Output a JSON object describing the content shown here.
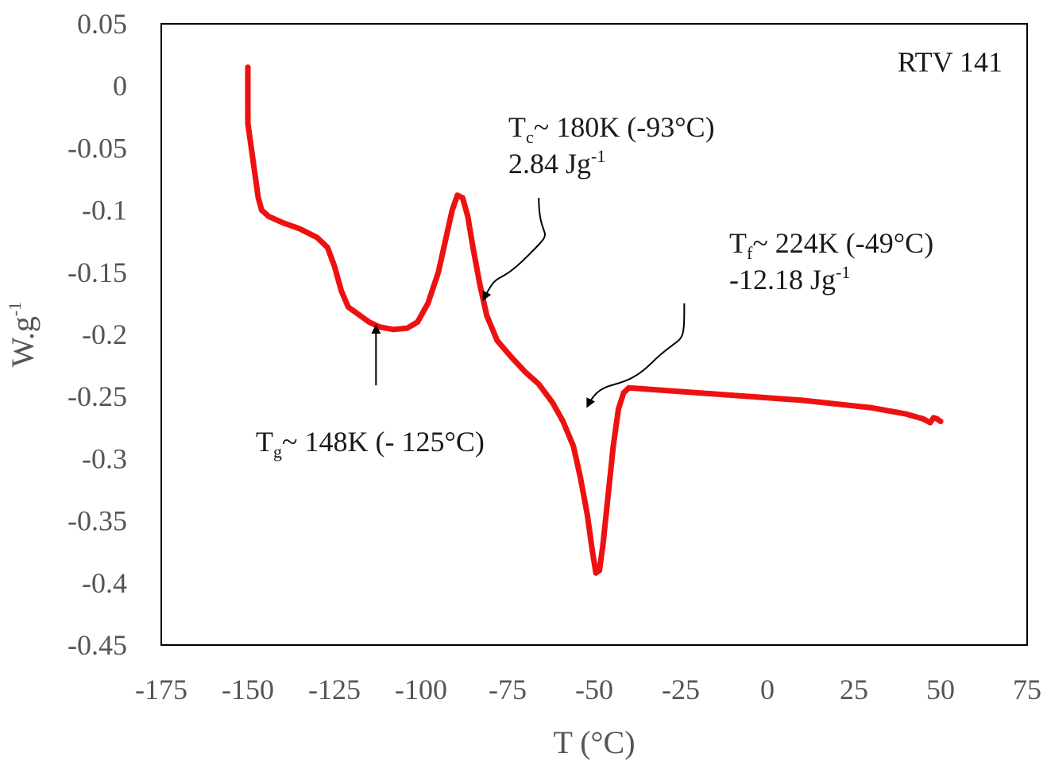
{
  "chart_data": {
    "type": "scatter",
    "title": "",
    "xlabel": "T (°C)",
    "ylabel": "W.g",
    "ylabel_sup": "-1",
    "xlim": [
      -175,
      75
    ],
    "ylim": [
      -0.45,
      0.05
    ],
    "x_ticks": [
      -175,
      -150,
      -125,
      -100,
      -75,
      -50,
      -25,
      0,
      25,
      50,
      75
    ],
    "x_tick_labels": [
      "-175",
      "-150",
      "-125",
      "-100",
      "-75",
      "-50",
      "-25",
      "0",
      "25",
      "50",
      "75"
    ],
    "y_ticks": [
      0.05,
      0,
      -0.05,
      -0.1,
      -0.15,
      -0.2,
      -0.25,
      -0.3,
      -0.35,
      -0.4,
      -0.45
    ],
    "y_tick_labels": [
      "0.05",
      "0",
      "-0.05",
      "-0.1",
      "-0.15",
      "-0.2",
      "-0.25",
      "-0.3",
      "-0.35",
      "-0.4",
      "-0.45"
    ],
    "grid": false,
    "series_color": "#ee1111",
    "sample_label": "RTV 141",
    "series": [
      {
        "points": [
          [
            -150,
            0.015
          ],
          [
            -150,
            0.005
          ],
          [
            -150,
            -0.01
          ],
          [
            -150,
            -0.03
          ],
          [
            -149,
            -0.05
          ],
          [
            -148,
            -0.07
          ],
          [
            -147,
            -0.09
          ],
          [
            -146,
            -0.1
          ],
          [
            -144,
            -0.105
          ],
          [
            -140,
            -0.11
          ],
          [
            -135,
            -0.115
          ],
          [
            -130,
            -0.122
          ],
          [
            -127,
            -0.13
          ],
          [
            -125,
            -0.145
          ],
          [
            -123,
            -0.165
          ],
          [
            -121,
            -0.178
          ],
          [
            -118,
            -0.184
          ],
          [
            -115,
            -0.19
          ],
          [
            -112,
            -0.194
          ],
          [
            -108,
            -0.196
          ],
          [
            -104,
            -0.195
          ],
          [
            -101,
            -0.19
          ],
          [
            -98,
            -0.175
          ],
          [
            -95,
            -0.15
          ],
          [
            -93,
            -0.125
          ],
          [
            -91,
            -0.1
          ],
          [
            -89.5,
            -0.088
          ],
          [
            -88,
            -0.09
          ],
          [
            -86.5,
            -0.105
          ],
          [
            -85,
            -0.13
          ],
          [
            -83,
            -0.16
          ],
          [
            -81,
            -0.185
          ],
          [
            -78,
            -0.205
          ],
          [
            -74,
            -0.218
          ],
          [
            -70,
            -0.23
          ],
          [
            -66,
            -0.24
          ],
          [
            -62,
            -0.255
          ],
          [
            -59,
            -0.27
          ],
          [
            -56,
            -0.29
          ],
          [
            -54,
            -0.315
          ],
          [
            -52,
            -0.345
          ],
          [
            -50.5,
            -0.375
          ],
          [
            -49.5,
            -0.392
          ],
          [
            -48.5,
            -0.39
          ],
          [
            -47.5,
            -0.37
          ],
          [
            -46,
            -0.33
          ],
          [
            -44.5,
            -0.29
          ],
          [
            -43,
            -0.26
          ],
          [
            -41.5,
            -0.247
          ],
          [
            -40,
            -0.243
          ],
          [
            -30,
            -0.245
          ],
          [
            -20,
            -0.247
          ],
          [
            -10,
            -0.249
          ],
          [
            0,
            -0.251
          ],
          [
            10,
            -0.253
          ],
          [
            20,
            -0.256
          ],
          [
            30,
            -0.259
          ],
          [
            40,
            -0.264
          ],
          [
            45,
            -0.268
          ],
          [
            47,
            -0.271
          ],
          [
            48,
            -0.267
          ],
          [
            49,
            -0.268
          ],
          [
            50,
            -0.27
          ]
        ]
      }
    ],
    "annotations": [
      {
        "id": "tg",
        "symbol": "T",
        "subscript": "g",
        "text": "~ 148K (- 125°C)",
        "arrow_from": [
          -113,
          -0.241
        ],
        "arrow_to": [
          -113,
          -0.193
        ]
      },
      {
        "id": "tc",
        "symbol": "T",
        "subscript": "c",
        "text": "~ 180K (-93°C)",
        "line2": "2.84 Jg",
        "line2_sup": "-1",
        "arrow_from": [
          -66,
          -0.09
        ],
        "arrow_to": [
          -82,
          -0.172
        ]
      },
      {
        "id": "tf",
        "symbol": "T",
        "subscript": "f",
        "text": "~ 224K (-49°C)",
        "line2": "-12.18 Jg",
        "line2_sup": "-1",
        "arrow_from": [
          -24,
          -0.175
        ],
        "arrow_to": [
          -52,
          -0.258
        ]
      }
    ]
  }
}
